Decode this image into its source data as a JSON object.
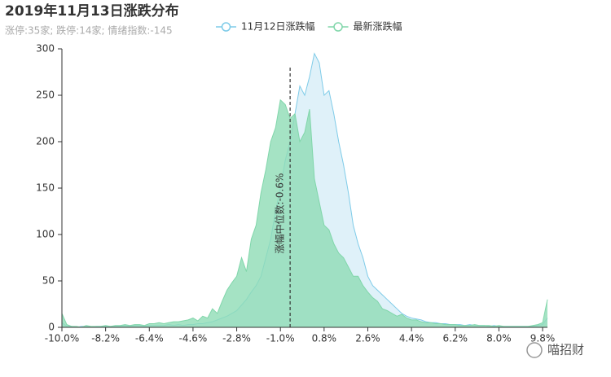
{
  "chart_data": {
    "type": "area",
    "title": "2019年11月13日涨跌分布",
    "subtitle": "涨停:35家; 跌停:14家; 情绪指数:-145",
    "x": [
      -10.0,
      -9.8,
      -9.6,
      -9.4,
      -9.2,
      -9.0,
      -8.8,
      -8.6,
      -8.4,
      -8.2,
      -8.0,
      -7.8,
      -7.6,
      -7.4,
      -7.2,
      -7.0,
      -6.8,
      -6.6,
      -6.4,
      -6.2,
      -6.0,
      -5.8,
      -5.6,
      -5.4,
      -5.2,
      -5.0,
      -4.8,
      -4.6,
      -4.4,
      -4.2,
      -4.0,
      -3.8,
      -3.6,
      -3.4,
      -3.2,
      -3.0,
      -2.8,
      -2.6,
      -2.4,
      -2.2,
      -2.0,
      -1.8,
      -1.6,
      -1.4,
      -1.2,
      -1.0,
      -0.8,
      -0.6,
      -0.4,
      -0.2,
      0.0,
      0.2,
      0.4,
      0.6,
      0.8,
      1.0,
      1.2,
      1.4,
      1.6,
      1.8,
      2.0,
      2.2,
      2.4,
      2.6,
      2.8,
      3.0,
      3.2,
      3.4,
      3.6,
      3.8,
      4.0,
      4.2,
      4.4,
      4.6,
      4.8,
      5.0,
      5.2,
      5.4,
      5.6,
      5.8,
      6.0,
      6.2,
      6.4,
      6.6,
      6.8,
      7.0,
      7.2,
      7.4,
      7.6,
      7.8,
      8.0,
      8.2,
      8.4,
      8.6,
      8.8,
      9.0,
      9.2,
      9.4,
      9.6,
      9.8,
      10.0
    ],
    "series": [
      {
        "name": "11月12日涨跌幅",
        "color": "#7ecbe8",
        "fill": "#dcf0f8",
        "values": [
          5,
          1,
          1,
          0,
          1,
          1,
          0,
          1,
          1,
          1,
          1,
          1,
          1,
          2,
          1,
          2,
          2,
          1,
          2,
          2,
          2,
          2,
          3,
          2,
          3,
          2,
          3,
          3,
          4,
          4,
          5,
          6,
          8,
          10,
          12,
          15,
          18,
          24,
          30,
          38,
          45,
          55,
          75,
          95,
          125,
          150,
          180,
          200,
          230,
          260,
          250,
          270,
          295,
          285,
          250,
          255,
          230,
          200,
          175,
          145,
          110,
          90,
          75,
          55,
          45,
          40,
          35,
          30,
          25,
          20,
          15,
          12,
          10,
          9,
          8,
          6,
          5,
          5,
          4,
          4,
          3,
          3,
          3,
          2,
          3,
          2,
          2,
          2,
          1,
          2,
          1,
          1,
          1,
          1,
          1,
          1,
          1,
          1,
          2,
          3,
          10
        ]
      },
      {
        "name": "最新涨跌幅",
        "color": "#80d6aa",
        "fill": "#8edcb5",
        "values": [
          15,
          3,
          1,
          1,
          0,
          2,
          1,
          1,
          1,
          2,
          1,
          2,
          2,
          3,
          2,
          3,
          3,
          2,
          4,
          4,
          5,
          4,
          5,
          6,
          6,
          7,
          8,
          10,
          7,
          12,
          10,
          20,
          15,
          28,
          40,
          48,
          55,
          75,
          60,
          95,
          110,
          145,
          170,
          200,
          215,
          245,
          240,
          225,
          230,
          200,
          210,
          235,
          160,
          135,
          110,
          105,
          90,
          80,
          75,
          65,
          55,
          55,
          45,
          38,
          32,
          28,
          20,
          18,
          15,
          12,
          14,
          10,
          8,
          8,
          6,
          5,
          5,
          4,
          4,
          3,
          3,
          3,
          2,
          2,
          2,
          3,
          2,
          2,
          2,
          1,
          2,
          1,
          1,
          1,
          1,
          1,
          1,
          2,
          3,
          5,
          30
        ]
      }
    ],
    "xlim": [
      -10,
      10
    ],
    "xticks": [
      {
        "value": -10,
        "label": "-10.0%"
      },
      {
        "value": -8.2,
        "label": "-8.2%"
      },
      {
        "value": -6.4,
        "label": "-6.4%"
      },
      {
        "value": -4.6,
        "label": "-4.6%"
      },
      {
        "value": -2.8,
        "label": "-2.8%"
      },
      {
        "value": -1.0,
        "label": "-1.0%"
      },
      {
        "value": 0.8,
        "label": "0.8%"
      },
      {
        "value": 2.6,
        "label": "2.6%"
      },
      {
        "value": 4.4,
        "label": "4.4%"
      },
      {
        "value": 6.2,
        "label": "6.2%"
      },
      {
        "value": 8.0,
        "label": "8.0%"
      },
      {
        "value": 9.8,
        "label": "9.8%"
      }
    ],
    "ylim": [
      0,
      300
    ],
    "yticks": [
      0,
      50,
      100,
      150,
      200,
      250,
      300
    ],
    "grid": false,
    "median": {
      "value": -0.6,
      "label": "涨幅中位数:-0.6%"
    }
  },
  "watermark": "喵招财"
}
